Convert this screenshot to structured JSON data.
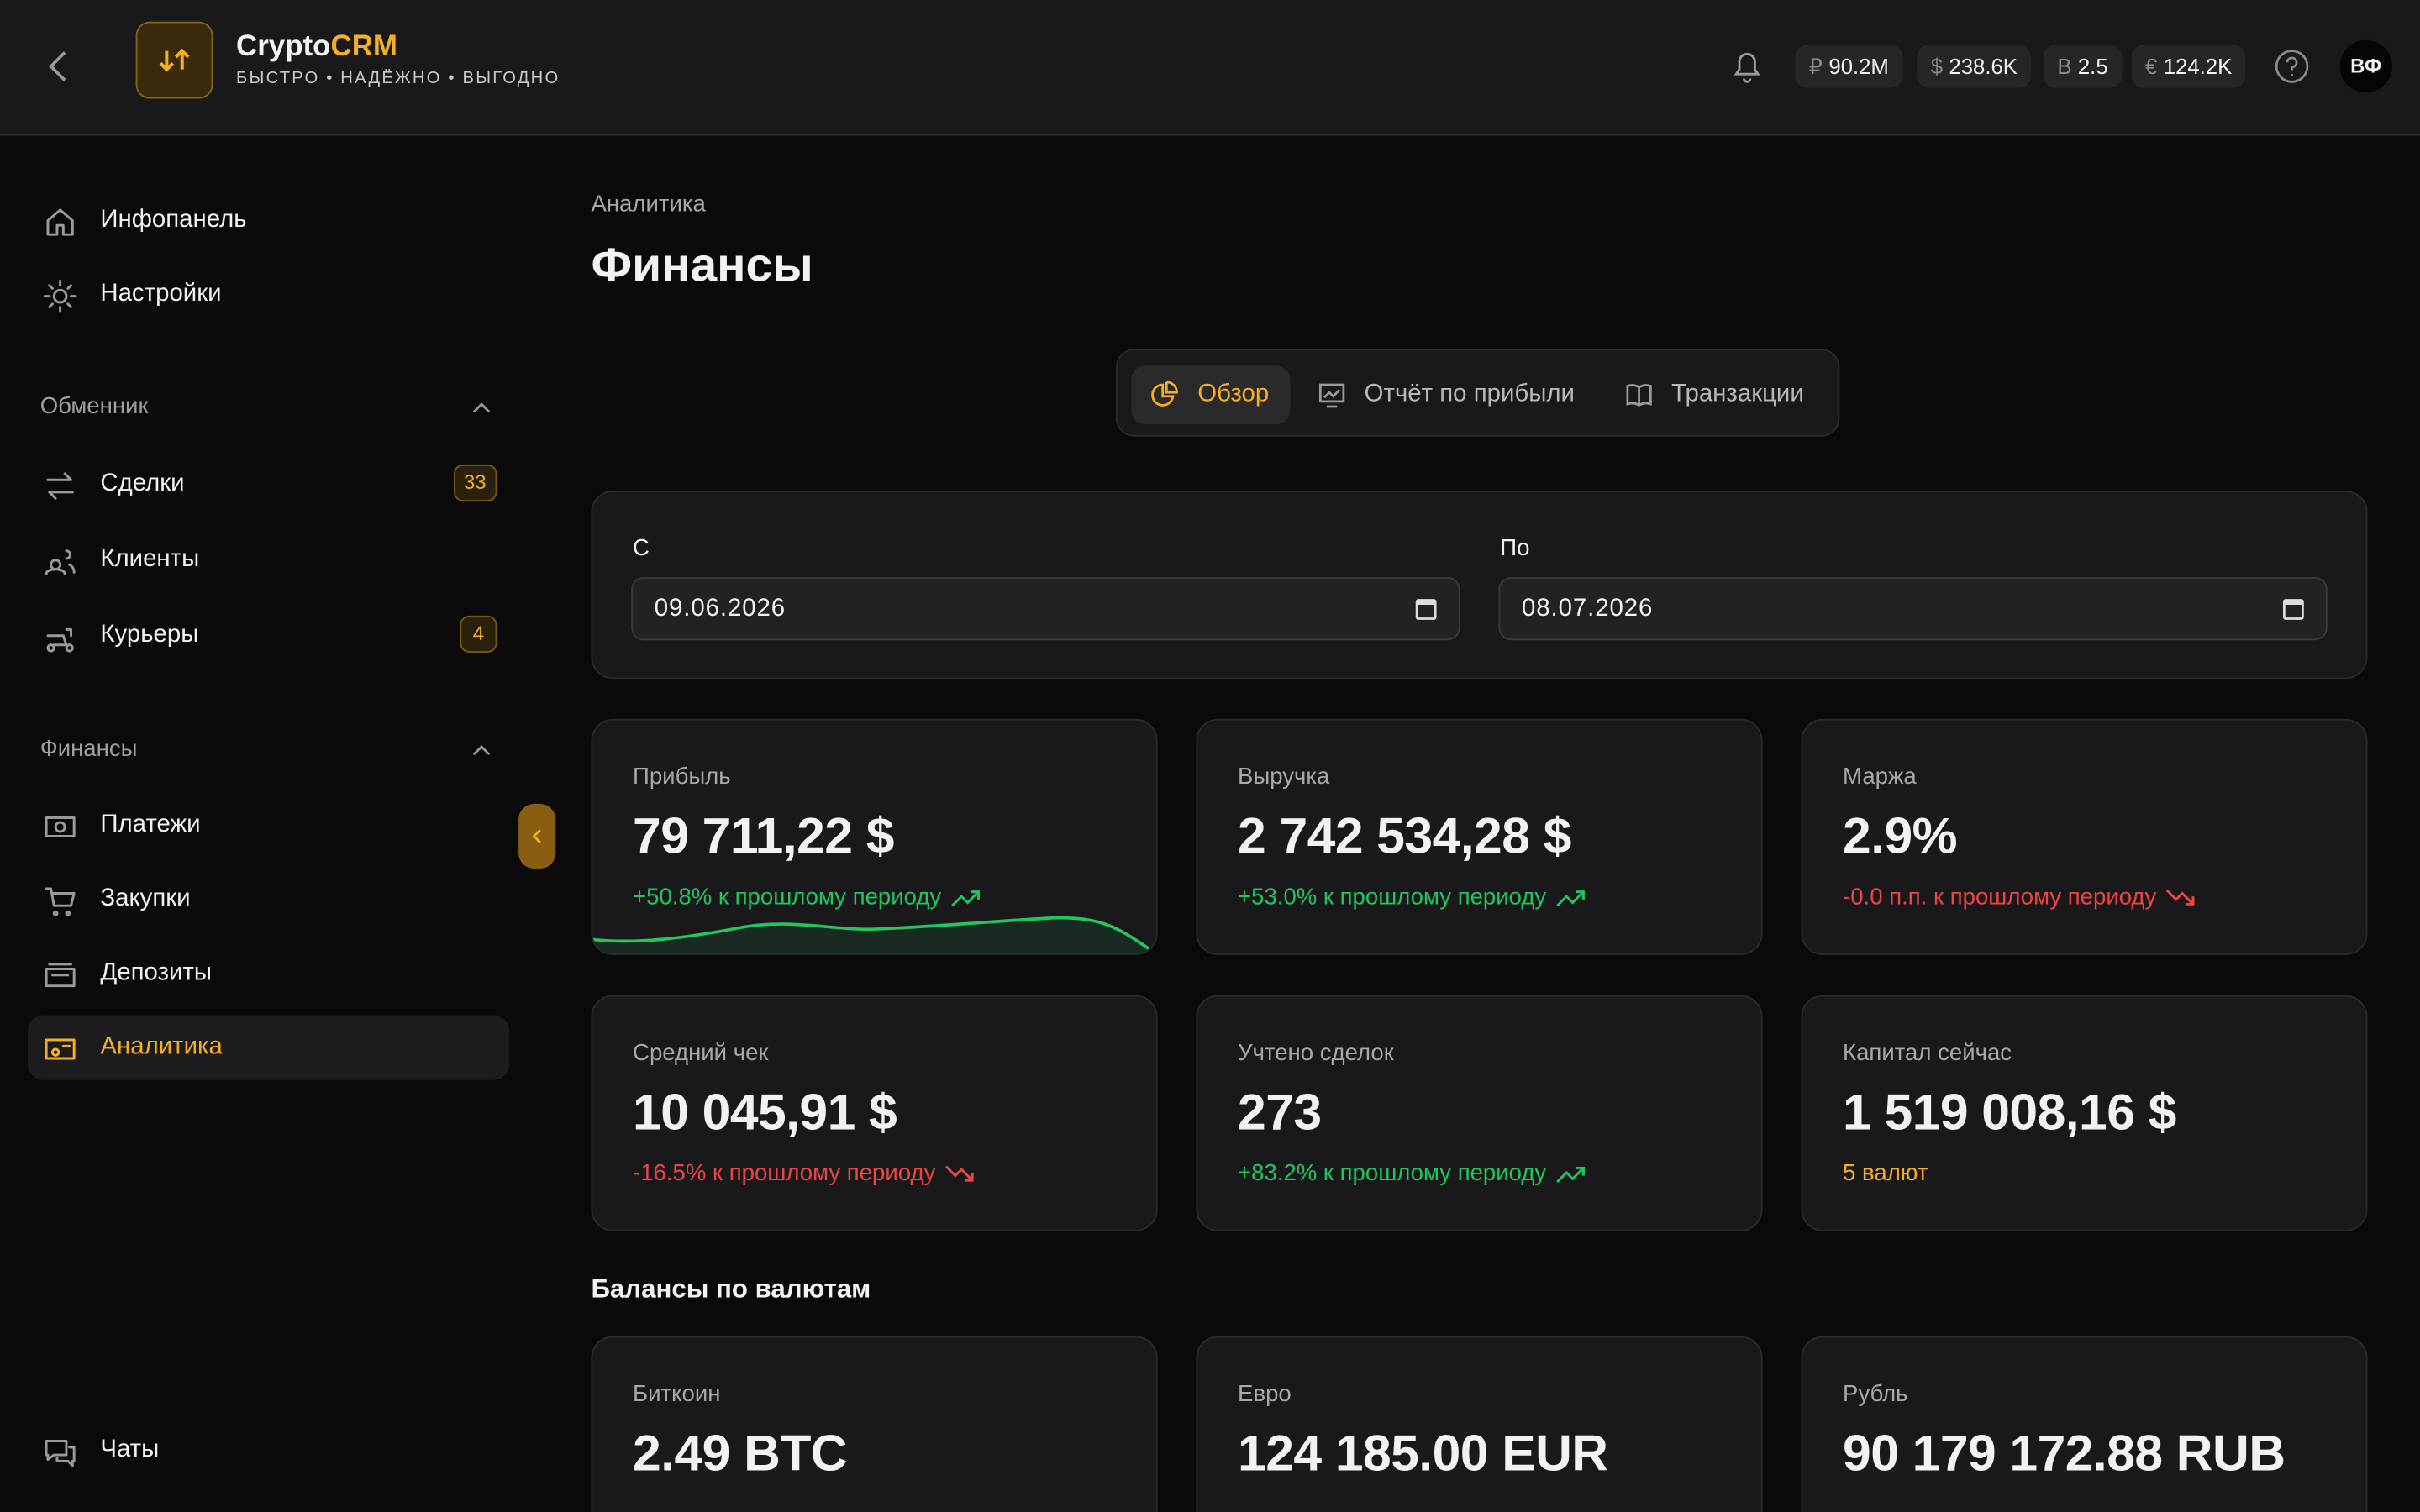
{
  "header": {
    "brand_prefix": "Crypto",
    "brand_suffix": "CRM",
    "tagline": "БЫСТРО • НАДЁЖНО • ВЫГОДНО",
    "balances": [
      {
        "symbol": "₽",
        "value": "90.2M"
      },
      {
        "symbol": "$",
        "value": "238.6K"
      },
      {
        "symbol": "B",
        "value": "2.5"
      },
      {
        "symbol": "€",
        "value": "124.2K"
      }
    ],
    "avatar": "ВФ"
  },
  "sidebar": {
    "top": [
      "Инфопанель",
      "Настройки"
    ],
    "sections": [
      {
        "title": "Обменник",
        "items": [
          {
            "label": "Сделки",
            "badge": 33
          },
          {
            "label": "Клиенты"
          },
          {
            "label": "Курьеры",
            "badge": 4
          }
        ]
      },
      {
        "title": "Финансы",
        "items": [
          {
            "label": "Платежи"
          },
          {
            "label": "Закупки"
          },
          {
            "label": "Депозиты"
          },
          {
            "label": "Аналитика",
            "active": true
          }
        ]
      }
    ],
    "bottom": "Чаты"
  },
  "page": {
    "breadcrumb": "Аналитика",
    "title": "Финансы",
    "tabs": [
      {
        "label": "Обзор",
        "active": true
      },
      {
        "label": "Отчёт по прибыли"
      },
      {
        "label": "Транзакции"
      }
    ],
    "date_from": {
      "label": "С",
      "value": "09.06.2026"
    },
    "date_to": {
      "label": "По",
      "value": "08.07.2026"
    },
    "stats": [
      {
        "label": "Прибыль",
        "value": "79 711,22 $",
        "delta": "+50.8% к прошлому периоду",
        "trend": "up"
      },
      {
        "label": "Выручка",
        "value": "2 742 534,28 $",
        "delta": "+53.0% к прошлому периоду",
        "trend": "up"
      },
      {
        "label": "Маржа",
        "value": "2.9%",
        "delta": "-0.0 п.п. к прошлому периоду",
        "trend": "down"
      },
      {
        "label": "Средний чек",
        "value": "10 045,91 $",
        "delta": "-16.5% к прошлому периоду",
        "trend": "down"
      },
      {
        "label": "Учтено сделок",
        "value": "273",
        "delta": "+83.2% к прошлому периоду",
        "trend": "up"
      },
      {
        "label": "Капитал сейчас",
        "value": "1 519 008,16 $",
        "delta": "5 валют",
        "trend": "note"
      }
    ],
    "balances_title": "Балансы по валютам",
    "balances": [
      {
        "label": "Биткоин",
        "value": "2.49 BTC"
      },
      {
        "label": "Евро",
        "value": "124 185.00 EUR"
      },
      {
        "label": "Рубль",
        "value": "90 179 172.88 RUB"
      }
    ]
  }
}
